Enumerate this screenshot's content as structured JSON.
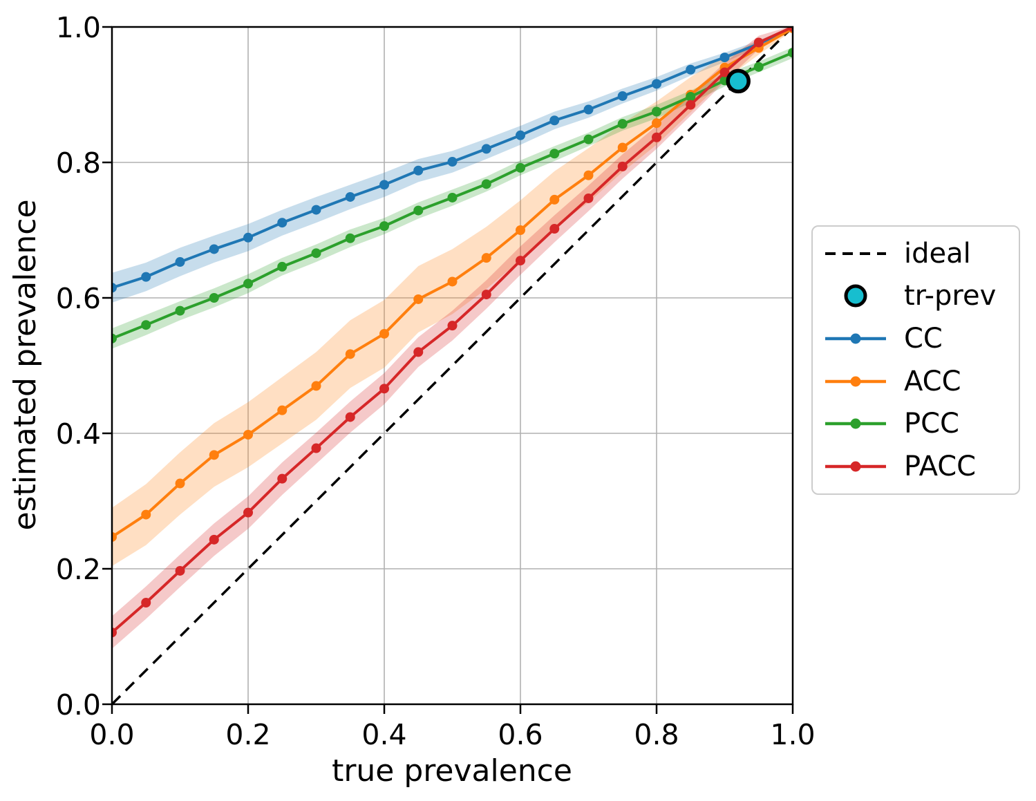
{
  "chart_data": {
    "type": "line",
    "title": "",
    "xlabel": "true prevalence",
    "ylabel": "estimated prevalence",
    "xlim": [
      0.0,
      1.0
    ],
    "ylim": [
      0.0,
      1.0
    ],
    "grid": true,
    "grid_color": "#b0b0b0",
    "legend_position": "outside-right",
    "tick_values": [
      0.0,
      0.2,
      0.4,
      0.6,
      0.8,
      1.0
    ],
    "x_tick_labels": [
      "0.0",
      "0.2",
      "0.4",
      "0.6",
      "0.8",
      "1.0"
    ],
    "y_tick_labels": [
      "0.0",
      "0.2",
      "0.4",
      "0.6",
      "0.8",
      "1.0"
    ],
    "x": [
      0.0,
      0.05,
      0.1,
      0.15,
      0.2,
      0.25,
      0.3,
      0.35,
      0.4,
      0.45,
      0.5,
      0.55,
      0.6,
      0.65,
      0.7,
      0.75,
      0.8,
      0.85,
      0.9,
      0.95,
      1.0
    ],
    "series": [
      {
        "name": "CC",
        "color": "#1f77b4",
        "values": [
          0.615,
          0.631,
          0.653,
          0.672,
          0.689,
          0.711,
          0.73,
          0.749,
          0.767,
          0.788,
          0.801,
          0.82,
          0.84,
          0.862,
          0.878,
          0.898,
          0.916,
          0.937,
          0.955,
          0.975,
          0.999
        ],
        "band_halfwidth": [
          0.022,
          0.021,
          0.021,
          0.02,
          0.02,
          0.019,
          0.019,
          0.018,
          0.018,
          0.017,
          0.016,
          0.015,
          0.014,
          0.013,
          0.012,
          0.011,
          0.01,
          0.009,
          0.007,
          0.005,
          0.002
        ]
      },
      {
        "name": "ACC",
        "color": "#ff7f0e",
        "values": [
          0.247,
          0.28,
          0.326,
          0.368,
          0.398,
          0.434,
          0.47,
          0.517,
          0.547,
          0.598,
          0.624,
          0.659,
          0.7,
          0.745,
          0.781,
          0.822,
          0.858,
          0.9,
          0.94,
          0.969,
          0.998
        ],
        "band_halfwidth": [
          0.043,
          0.045,
          0.046,
          0.047,
          0.048,
          0.049,
          0.05,
          0.05,
          0.05,
          0.049,
          0.048,
          0.046,
          0.044,
          0.042,
          0.04,
          0.036,
          0.032,
          0.026,
          0.018,
          0.01,
          0.003
        ]
      },
      {
        "name": "PCC",
        "color": "#2ca02c",
        "values": [
          0.54,
          0.56,
          0.581,
          0.6,
          0.621,
          0.646,
          0.666,
          0.688,
          0.706,
          0.729,
          0.748,
          0.768,
          0.792,
          0.813,
          0.834,
          0.857,
          0.875,
          0.897,
          0.921,
          0.941,
          0.962
        ],
        "band_halfwidth": [
          0.015,
          0.015,
          0.014,
          0.014,
          0.014,
          0.013,
          0.013,
          0.013,
          0.012,
          0.012,
          0.012,
          0.011,
          0.011,
          0.011,
          0.01,
          0.01,
          0.01,
          0.009,
          0.009,
          0.008,
          0.008
        ]
      },
      {
        "name": "PACC",
        "color": "#d62728",
        "values": [
          0.106,
          0.15,
          0.197,
          0.243,
          0.283,
          0.333,
          0.378,
          0.424,
          0.466,
          0.52,
          0.559,
          0.605,
          0.655,
          0.702,
          0.747,
          0.794,
          0.837,
          0.885,
          0.933,
          0.977,
          1.0
        ],
        "band_halfwidth": [
          0.024,
          0.024,
          0.024,
          0.024,
          0.024,
          0.024,
          0.023,
          0.023,
          0.023,
          0.022,
          0.022,
          0.021,
          0.021,
          0.02,
          0.019,
          0.018,
          0.017,
          0.016,
          0.014,
          0.01,
          0.002
        ]
      }
    ],
    "ideal_line": {
      "label": "ideal",
      "x": [
        0.0,
        1.0
      ],
      "y": [
        0.0,
        1.0
      ],
      "color": "#000000",
      "style": "dashed"
    },
    "train_prevalence_marker": {
      "label": "tr-prev",
      "x": 0.92,
      "y": 0.92,
      "fill": "#17becf",
      "edge": "#000000"
    },
    "legend": [
      {
        "label": "ideal",
        "swatch": "dashed-line",
        "color": "#000000"
      },
      {
        "label": "tr-prev",
        "swatch": "circle",
        "color": "#17becf"
      },
      {
        "label": "CC",
        "swatch": "line-dot",
        "color": "#1f77b4"
      },
      {
        "label": "ACC",
        "swatch": "line-dot",
        "color": "#ff7f0e"
      },
      {
        "label": "PCC",
        "swatch": "line-dot",
        "color": "#2ca02c"
      },
      {
        "label": "PACC",
        "swatch": "line-dot",
        "color": "#d62728"
      }
    ]
  }
}
